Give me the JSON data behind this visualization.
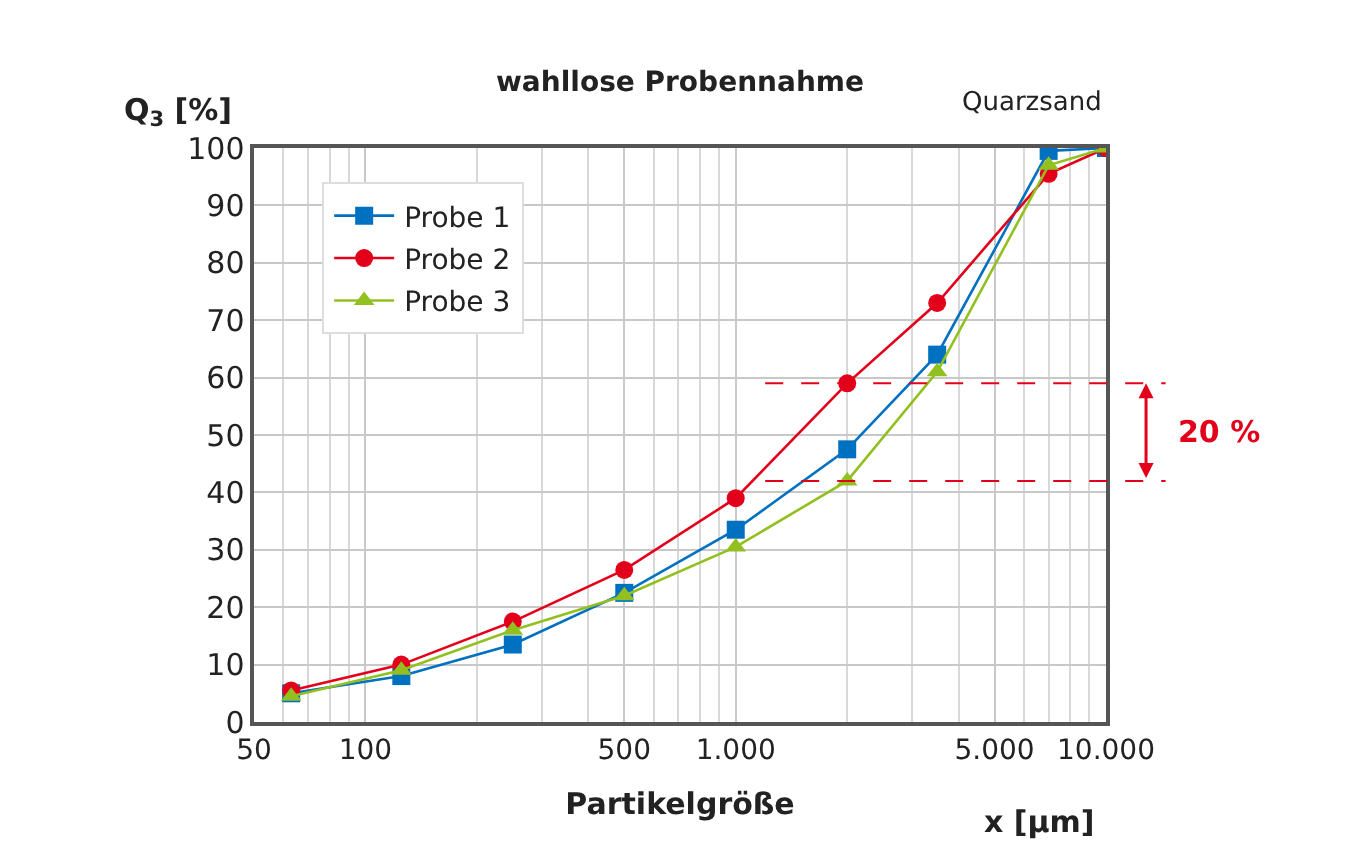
{
  "chart_data": {
    "type": "line",
    "title": "wahllose Probennahme",
    "xlabel": "Partikelgröße",
    "ylabel": "Q$_{3}$ [%]",
    "annotations": [
      "Quarzsand",
      "x [µm]",
      "20 %"
    ],
    "x": [
      63,
      125,
      250,
      500,
      1000,
      2000,
      3500,
      7000,
      10000
    ],
    "series": [
      {
        "name": "Probe 1",
        "color": "#0070c0",
        "marker": "square",
        "values": [
          5,
          8,
          13.5,
          22.5,
          33.5,
          47.5,
          64,
          99.5,
          100
        ]
      },
      {
        "name": "Probe 2",
        "color": "#e3001b",
        "marker": "circle",
        "values": [
          5.5,
          10,
          17.5,
          26.5,
          39,
          59,
          73,
          95.5,
          100
        ]
      },
      {
        "name": "Probe 3",
        "color": "#92c020",
        "marker": "triangle",
        "values": [
          4.5,
          9,
          16,
          22,
          30.5,
          42,
          61,
          97,
          100
        ]
      }
    ],
    "log": "x",
    "xlim": [
      50,
      10000
    ],
    "xticks": [
      50,
      100,
      500,
      {
        "value": 1000,
        "label": "1.000"
      },
      {
        "value": 5000,
        "label": "5.000"
      },
      {
        "value": 10000,
        "label": "10.000"
      }
    ],
    "ylim": [
      0,
      100
    ],
    "yticks": [
      0,
      10,
      20,
      30,
      40,
      50,
      60,
      70,
      80,
      90,
      100
    ],
    "ref_lines": [
      {
        "axis": "y",
        "value": 59,
        "color": "#e3001b",
        "line_style": "dashed"
      },
      {
        "axis": "y",
        "value": 42,
        "color": "#e3001b",
        "line_style": "dashed"
      }
    ],
    "grid": true,
    "legend": "top left",
    "line_style": "solid"
  }
}
